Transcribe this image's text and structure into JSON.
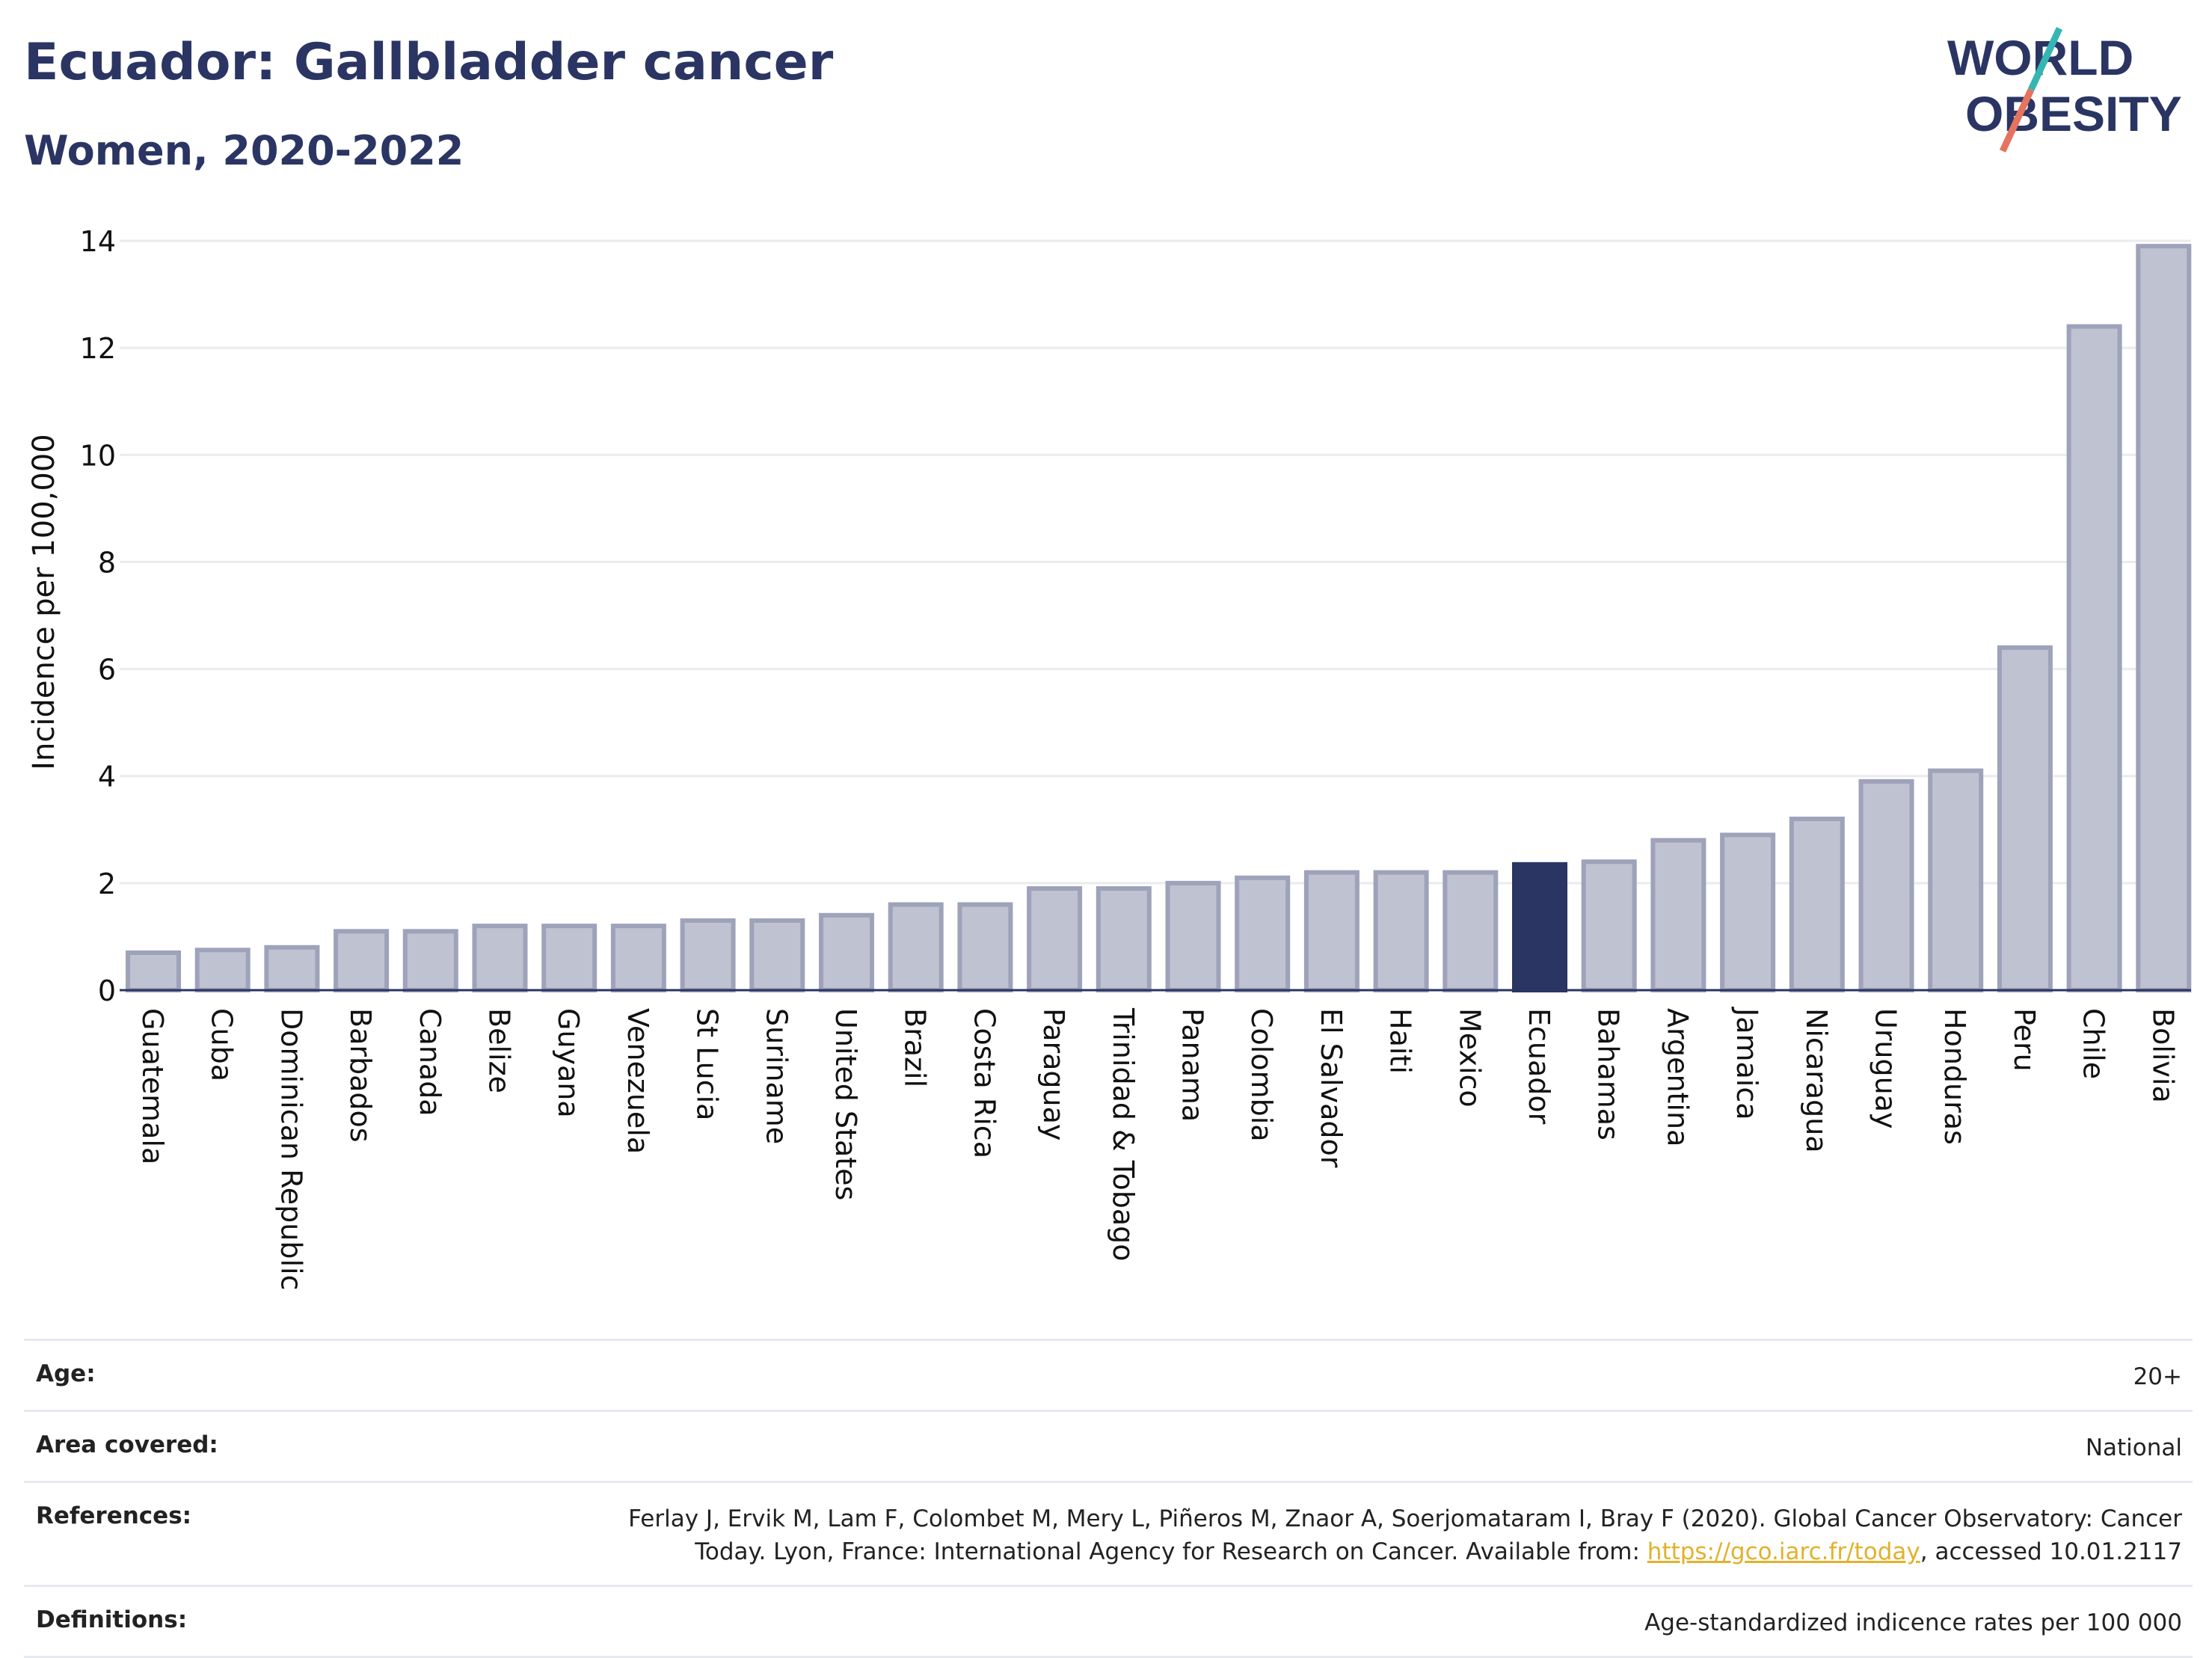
{
  "header": {
    "title": "Ecuador: Gallbladder cancer",
    "subtitle": "Women, 2020-2022",
    "logo_line1": "WORLD",
    "logo_line2": "OBESITY"
  },
  "chart_data": {
    "type": "bar",
    "ylabel": "Incidence per 100,000",
    "xlabel": "",
    "ylim": [
      0,
      14
    ],
    "yticks": [
      0,
      2,
      4,
      6,
      8,
      10,
      12,
      14
    ],
    "grid": true,
    "highlight": "Ecuador",
    "categories": [
      "Guatemala",
      "Cuba",
      "Dominican Republic",
      "Barbados",
      "Canada",
      "Belize",
      "Guyana",
      "Venezuela",
      "St Lucia",
      "Suriname",
      "United States",
      "Brazil",
      "Costa Rica",
      "Paraguay",
      "Trinidad & Tobago",
      "Panama",
      "Colombia",
      "El Salvador",
      "Haiti",
      "Mexico",
      "Ecuador",
      "Bahamas",
      "Argentina",
      "Jamaica",
      "Nicaragua",
      "Uruguay",
      "Honduras",
      "Peru",
      "Chile",
      "Bolivia"
    ],
    "values": [
      0.7,
      0.75,
      0.8,
      1.1,
      1.1,
      1.2,
      1.2,
      1.2,
      1.3,
      1.3,
      1.4,
      1.6,
      1.6,
      1.9,
      1.9,
      2.0,
      2.1,
      2.2,
      2.2,
      2.2,
      2.35,
      2.4,
      2.8,
      2.9,
      3.2,
      3.9,
      4.1,
      6.4,
      12.4,
      13.9
    ],
    "colors": {
      "bar": "#bfc2d0",
      "bar_border": "#9ea2ba",
      "highlight": "#2a3563",
      "grid": "#e9ebef",
      "axis": "#2a3563"
    }
  },
  "meta": {
    "age_label": "Age:",
    "age_value": "20+",
    "area_label": "Area covered:",
    "area_value": "National",
    "references_label": "References:",
    "references_text_1": "Ferlay J, Ervik M, Lam F, Colombet M, Mery L, Piñeros M, Znaor A, Soerjomataram I, Bray F (2020). Global Cancer Observatory: Cancer",
    "references_text_2": "Today. Lyon, France: International Agency for Research on Cancer. Available from: ",
    "references_link": "https://gco.iarc.fr/today",
    "references_text_3": ", accessed 10.01.2117",
    "definitions_label": "Definitions:",
    "definitions_value": "Age-standardized indicence rates per 100 000"
  },
  "colors": {
    "brand_navy": "#2a3563",
    "logo_teal": "#35b6b4",
    "logo_coral": "#e5735f",
    "link": "#e2b12c"
  }
}
